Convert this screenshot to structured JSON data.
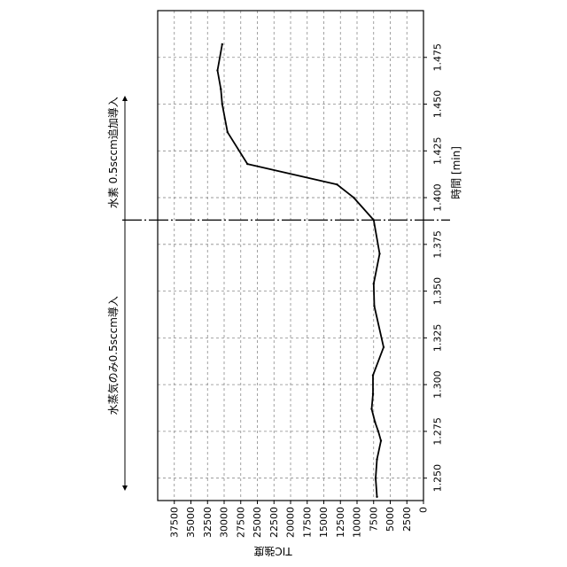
{
  "chart_data": {
    "type": "line",
    "orientation": "rotated-90",
    "xlabel": "時間 [min]",
    "ylabel": "TIC強度",
    "x_ticks": [
      "1.250",
      "1.275",
      "1.300",
      "1.325",
      "1.350",
      "1.375",
      "1.400",
      "1.425",
      "1.450",
      "1.475"
    ],
    "y_ticks": [
      "0",
      "2500",
      "5000",
      "7500",
      "10000",
      "12500",
      "15000",
      "17500",
      "20000",
      "22500",
      "25000",
      "27500",
      "30000",
      "32500",
      "35000",
      "37500"
    ],
    "xlim": [
      1.238,
      1.5
    ],
    "ylim": [
      0,
      40000
    ],
    "grid": true,
    "x": [
      1.24,
      1.25,
      1.26,
      1.27,
      1.275,
      1.28,
      1.287,
      1.295,
      1.305,
      1.32,
      1.342,
      1.354,
      1.37,
      1.388,
      1.4,
      1.407,
      1.418,
      1.435,
      1.45,
      1.458,
      1.468,
      1.482
    ],
    "values": [
      7000,
      7200,
      7000,
      6400,
      6800,
      7300,
      7800,
      7600,
      7600,
      6000,
      7400,
      7500,
      6600,
      7500,
      10500,
      13000,
      26500,
      29500,
      30300,
      30500,
      31000,
      30300
    ],
    "annotations": {
      "before_label": "水蒸気のみ0.5sccm導入",
      "after_label": "水素 0.5sccm追加導入",
      "divider_x": 1.388
    }
  }
}
